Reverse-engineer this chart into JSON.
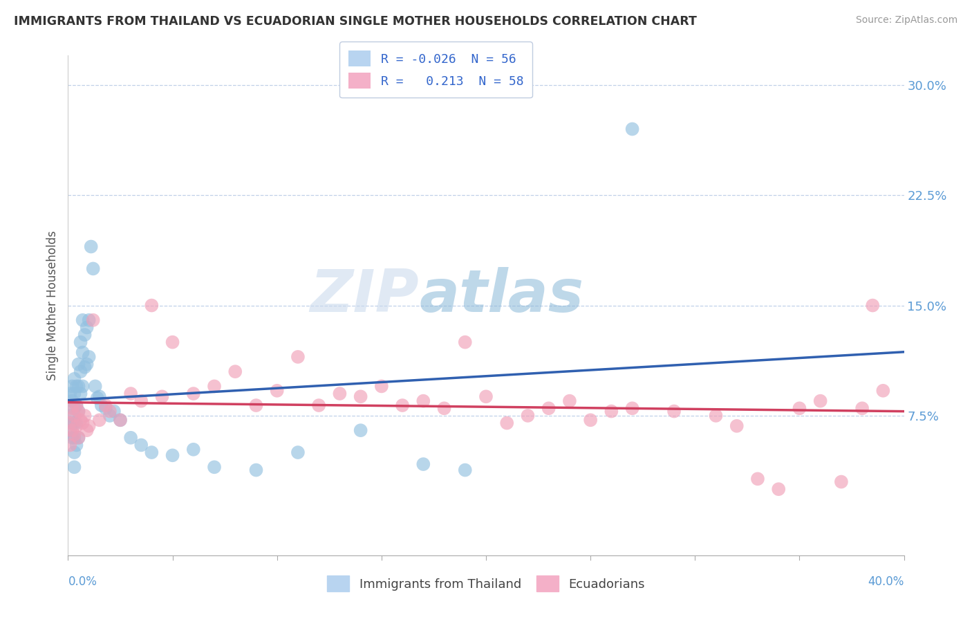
{
  "title": "IMMIGRANTS FROM THAILAND VS ECUADORIAN SINGLE MOTHER HOUSEHOLDS CORRELATION CHART",
  "source": "Source: ZipAtlas.com",
  "ylabel": "Single Mother Households",
  "right_yticks": [
    0.075,
    0.15,
    0.225,
    0.3
  ],
  "right_ytick_labels": [
    "7.5%",
    "15.0%",
    "22.5%",
    "30.0%"
  ],
  "bottom_legend": [
    "Immigrants from Thailand",
    "Ecuadorians"
  ],
  "blue_color": "#92c0e0",
  "pink_color": "#f0a0b8",
  "trend_blue_color": "#3060b0",
  "trend_pink_color": "#d04060",
  "trend_blue_dash": "#90c0e0",
  "xlim": [
    0.0,
    0.4
  ],
  "ylim": [
    -0.02,
    0.32
  ],
  "plot_ylim": [
    0.0,
    0.32
  ],
  "blue_x": [
    0.001,
    0.001,
    0.001,
    0.002,
    0.002,
    0.002,
    0.002,
    0.003,
    0.003,
    0.003,
    0.003,
    0.003,
    0.003,
    0.003,
    0.004,
    0.004,
    0.004,
    0.004,
    0.005,
    0.005,
    0.005,
    0.005,
    0.006,
    0.006,
    0.006,
    0.007,
    0.007,
    0.007,
    0.008,
    0.008,
    0.009,
    0.009,
    0.01,
    0.01,
    0.011,
    0.012,
    0.013,
    0.014,
    0.015,
    0.016,
    0.018,
    0.02,
    0.022,
    0.025,
    0.03,
    0.035,
    0.04,
    0.05,
    0.06,
    0.07,
    0.09,
    0.11,
    0.14,
    0.17,
    0.19,
    0.27
  ],
  "blue_y": [
    0.09,
    0.075,
    0.065,
    0.095,
    0.085,
    0.07,
    0.06,
    0.1,
    0.09,
    0.08,
    0.07,
    0.06,
    0.05,
    0.04,
    0.095,
    0.082,
    0.07,
    0.055,
    0.11,
    0.095,
    0.078,
    0.06,
    0.125,
    0.105,
    0.09,
    0.14,
    0.118,
    0.095,
    0.13,
    0.108,
    0.135,
    0.11,
    0.14,
    0.115,
    0.19,
    0.175,
    0.095,
    0.087,
    0.088,
    0.082,
    0.08,
    0.075,
    0.078,
    0.072,
    0.06,
    0.055,
    0.05,
    0.048,
    0.052,
    0.04,
    0.038,
    0.05,
    0.065,
    0.042,
    0.038,
    0.27
  ],
  "pink_x": [
    0.001,
    0.001,
    0.002,
    0.002,
    0.003,
    0.003,
    0.004,
    0.004,
    0.005,
    0.005,
    0.006,
    0.007,
    0.008,
    0.009,
    0.01,
    0.012,
    0.015,
    0.018,
    0.02,
    0.025,
    0.03,
    0.035,
    0.04,
    0.045,
    0.05,
    0.06,
    0.07,
    0.08,
    0.09,
    0.1,
    0.11,
    0.12,
    0.13,
    0.14,
    0.15,
    0.16,
    0.17,
    0.18,
    0.19,
    0.2,
    0.21,
    0.22,
    0.23,
    0.24,
    0.25,
    0.26,
    0.27,
    0.29,
    0.31,
    0.32,
    0.33,
    0.34,
    0.35,
    0.36,
    0.37,
    0.38,
    0.385,
    0.39
  ],
  "pink_y": [
    0.07,
    0.055,
    0.08,
    0.065,
    0.075,
    0.062,
    0.082,
    0.068,
    0.078,
    0.06,
    0.072,
    0.07,
    0.075,
    0.065,
    0.068,
    0.14,
    0.072,
    0.082,
    0.078,
    0.072,
    0.09,
    0.085,
    0.15,
    0.088,
    0.125,
    0.09,
    0.095,
    0.105,
    0.082,
    0.092,
    0.115,
    0.082,
    0.09,
    0.088,
    0.095,
    0.082,
    0.085,
    0.08,
    0.125,
    0.088,
    0.07,
    0.075,
    0.08,
    0.085,
    0.072,
    0.078,
    0.08,
    0.078,
    0.075,
    0.068,
    0.032,
    0.025,
    0.08,
    0.085,
    0.03,
    0.08,
    0.15,
    0.092
  ]
}
